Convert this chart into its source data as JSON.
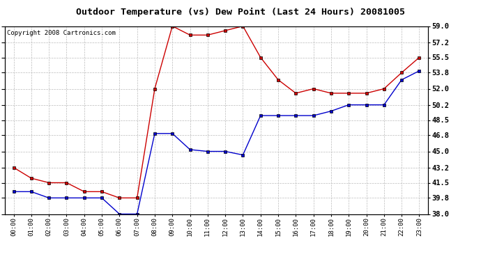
{
  "title": "Outdoor Temperature (vs) Dew Point (Last 24 Hours) 20081005",
  "copyright_text": "Copyright 2008 Cartronics.com",
  "hours": [
    "00:00",
    "01:00",
    "02:00",
    "03:00",
    "04:00",
    "05:00",
    "06:00",
    "07:00",
    "08:00",
    "09:00",
    "10:00",
    "11:00",
    "12:00",
    "13:00",
    "14:00",
    "15:00",
    "16:00",
    "17:00",
    "18:00",
    "19:00",
    "20:00",
    "21:00",
    "22:00",
    "23:00"
  ],
  "temp_red": [
    43.2,
    42.0,
    41.5,
    41.5,
    40.5,
    40.5,
    39.8,
    39.8,
    52.0,
    59.0,
    58.0,
    58.0,
    58.5,
    59.0,
    55.5,
    53.0,
    51.5,
    52.0,
    51.5,
    51.5,
    51.5,
    52.0,
    53.8,
    55.5
  ],
  "temp_blue": [
    40.5,
    40.5,
    39.8,
    39.8,
    39.8,
    39.8,
    38.0,
    38.0,
    47.0,
    47.0,
    45.2,
    45.0,
    45.0,
    44.6,
    49.0,
    49.0,
    49.0,
    49.0,
    49.5,
    50.2,
    50.2,
    50.2,
    53.0,
    54.0
  ],
  "ylim_min": 38.0,
  "ylim_max": 59.0,
  "yticks": [
    38.0,
    39.8,
    41.5,
    43.2,
    45.0,
    46.8,
    48.5,
    50.2,
    52.0,
    53.8,
    55.5,
    57.2,
    59.0
  ],
  "background_color": "#ffffff",
  "plot_bg_color": "#ffffff",
  "grid_color": "#bbbbbb",
  "line_red_color": "#cc0000",
  "line_blue_color": "#0000cc",
  "marker_color": "#000000",
  "title_fontsize": 9.5,
  "copyright_fontsize": 6.5
}
